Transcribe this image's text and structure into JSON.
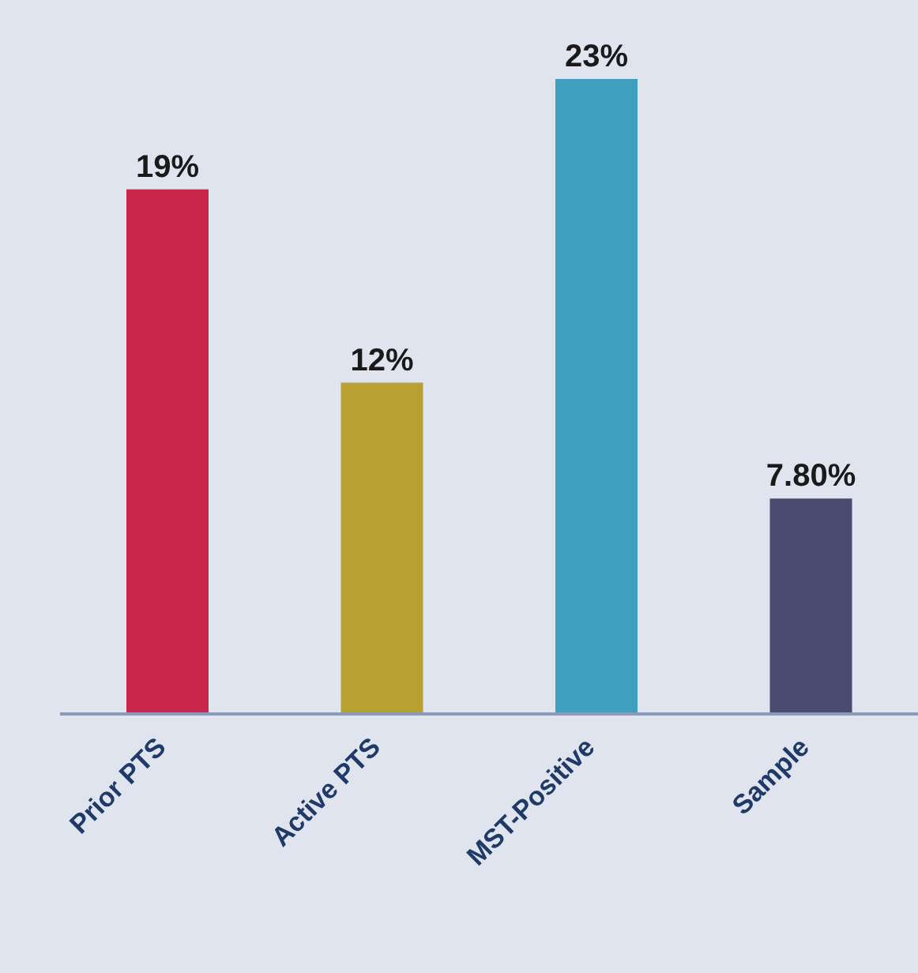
{
  "chart_data": {
    "type": "bar",
    "categories": [
      "Prior PTS",
      "Active PTS",
      "MST-Positive",
      "Sample"
    ],
    "values": [
      19,
      12,
      23,
      7.8
    ],
    "value_labels": [
      "19%",
      "12%",
      "23%",
      "7.80%"
    ],
    "colors": [
      "#c8264a",
      "#b9a032",
      "#3f9fbf",
      "#4a4a72"
    ]
  }
}
